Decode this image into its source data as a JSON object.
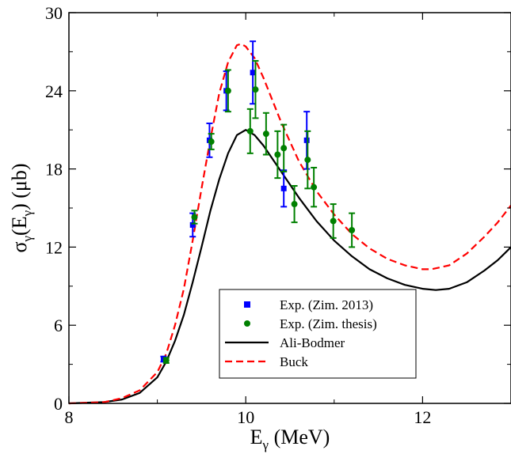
{
  "chart_data": {
    "type": "line",
    "title": "",
    "xlabel": {
      "main": "E",
      "sub": "γ",
      "unit": " (MeV)"
    },
    "ylabel": {
      "sigma": "σ",
      "sub1": "γ",
      "open": "(E",
      "sub2": "γ",
      "close": ") (μb)"
    },
    "xlim": [
      8,
      13
    ],
    "ylim": [
      0,
      30
    ],
    "x_ticks": [
      8,
      10,
      12
    ],
    "x_tick_labels": [
      "8",
      "10",
      "12"
    ],
    "y_ticks": [
      0,
      6,
      12,
      18,
      24,
      30
    ],
    "y_tick_labels": [
      "0",
      "6",
      "12",
      "18",
      "24",
      "30"
    ],
    "grid": false,
    "legend_placement": "bottom-center",
    "series": [
      {
        "name": "Exp. (Zim. 2013)",
        "kind": "scatter",
        "marker": "square",
        "color": "#0000ff",
        "points": [
          {
            "x": 9.07,
            "y": 3.4,
            "err": 0.2
          },
          {
            "x": 9.4,
            "y": 13.7,
            "err": 0.9
          },
          {
            "x": 9.59,
            "y": 20.2,
            "err": 1.3
          },
          {
            "x": 9.78,
            "y": 24.0,
            "err": 1.5
          },
          {
            "x": 10.08,
            "y": 25.4,
            "err": 2.4
          },
          {
            "x": 10.43,
            "y": 16.5,
            "err": 1.4
          },
          {
            "x": 10.69,
            "y": 20.2,
            "err": 2.2
          }
        ]
      },
      {
        "name": "Exp. (Zim. thesis)",
        "kind": "scatter",
        "marker": "circle",
        "color": "#008000",
        "points": [
          {
            "x": 9.1,
            "y": 3.3,
            "err": 0.2
          },
          {
            "x": 9.42,
            "y": 14.3,
            "err": 0.5
          },
          {
            "x": 9.61,
            "y": 20.1,
            "err": 0.6
          },
          {
            "x": 9.8,
            "y": 24.0,
            "err": 1.6
          },
          {
            "x": 10.05,
            "y": 20.9,
            "err": 1.7
          },
          {
            "x": 10.11,
            "y": 24.1,
            "err": 2.2
          },
          {
            "x": 10.23,
            "y": 20.7,
            "err": 1.6
          },
          {
            "x": 10.36,
            "y": 19.1,
            "err": 1.8
          },
          {
            "x": 10.43,
            "y": 19.6,
            "err": 1.8
          },
          {
            "x": 10.55,
            "y": 15.3,
            "err": 1.4
          },
          {
            "x": 10.7,
            "y": 18.7,
            "err": 2.2
          },
          {
            "x": 10.77,
            "y": 16.6,
            "err": 1.5
          },
          {
            "x": 10.99,
            "y": 14.0,
            "err": 1.3
          },
          {
            "x": 11.2,
            "y": 13.3,
            "err": 1.3
          }
        ]
      },
      {
        "name": "Ali-Bodmer",
        "kind": "line",
        "style": "solid",
        "color": "#000000",
        "points": [
          {
            "x": 8.0,
            "y": 0
          },
          {
            "x": 8.4,
            "y": 0.1
          },
          {
            "x": 8.6,
            "y": 0.3
          },
          {
            "x": 8.8,
            "y": 0.8
          },
          {
            "x": 9.0,
            "y": 2.0
          },
          {
            "x": 9.1,
            "y": 3.2
          },
          {
            "x": 9.2,
            "y": 4.8
          },
          {
            "x": 9.3,
            "y": 6.8
          },
          {
            "x": 9.4,
            "y": 9.3
          },
          {
            "x": 9.5,
            "y": 12.0
          },
          {
            "x": 9.6,
            "y": 14.8
          },
          {
            "x": 9.7,
            "y": 17.2
          },
          {
            "x": 9.8,
            "y": 19.2
          },
          {
            "x": 9.9,
            "y": 20.6
          },
          {
            "x": 10.0,
            "y": 21.0
          },
          {
            "x": 10.1,
            "y": 20.6
          },
          {
            "x": 10.2,
            "y": 19.8
          },
          {
            "x": 10.4,
            "y": 17.8
          },
          {
            "x": 10.6,
            "y": 15.8
          },
          {
            "x": 10.8,
            "y": 14.0
          },
          {
            "x": 11.0,
            "y": 12.5
          },
          {
            "x": 11.2,
            "y": 11.3
          },
          {
            "x": 11.4,
            "y": 10.3
          },
          {
            "x": 11.6,
            "y": 9.6
          },
          {
            "x": 11.8,
            "y": 9.1
          },
          {
            "x": 12.0,
            "y": 8.8
          },
          {
            "x": 12.15,
            "y": 8.7
          },
          {
            "x": 12.3,
            "y": 8.8
          },
          {
            "x": 12.5,
            "y": 9.3
          },
          {
            "x": 12.7,
            "y": 10.2
          },
          {
            "x": 12.85,
            "y": 11.0
          },
          {
            "x": 13.0,
            "y": 12.0
          }
        ]
      },
      {
        "name": "Buck",
        "kind": "line",
        "style": "dashed",
        "color": "#ff0000",
        "points": [
          {
            "x": 8.0,
            "y": 0
          },
          {
            "x": 8.4,
            "y": 0.1
          },
          {
            "x": 8.6,
            "y": 0.4
          },
          {
            "x": 8.8,
            "y": 1.0
          },
          {
            "x": 9.0,
            "y": 2.4
          },
          {
            "x": 9.1,
            "y": 3.8
          },
          {
            "x": 9.2,
            "y": 6.0
          },
          {
            "x": 9.3,
            "y": 8.8
          },
          {
            "x": 9.4,
            "y": 12.5
          },
          {
            "x": 9.5,
            "y": 16.5
          },
          {
            "x": 9.6,
            "y": 20.3
          },
          {
            "x": 9.7,
            "y": 23.8
          },
          {
            "x": 9.8,
            "y": 26.2
          },
          {
            "x": 9.9,
            "y": 27.5
          },
          {
            "x": 9.95,
            "y": 27.6
          },
          {
            "x": 10.0,
            "y": 27.4
          },
          {
            "x": 10.1,
            "y": 26.5
          },
          {
            "x": 10.2,
            "y": 25.0
          },
          {
            "x": 10.4,
            "y": 21.6
          },
          {
            "x": 10.6,
            "y": 18.6
          },
          {
            "x": 10.8,
            "y": 16.3
          },
          {
            "x": 11.0,
            "y": 14.5
          },
          {
            "x": 11.2,
            "y": 13.0
          },
          {
            "x": 11.4,
            "y": 11.9
          },
          {
            "x": 11.6,
            "y": 11.1
          },
          {
            "x": 11.8,
            "y": 10.6
          },
          {
            "x": 12.0,
            "y": 10.3
          },
          {
            "x": 12.1,
            "y": 10.3
          },
          {
            "x": 12.3,
            "y": 10.6
          },
          {
            "x": 12.5,
            "y": 11.5
          },
          {
            "x": 12.7,
            "y": 12.8
          },
          {
            "x": 12.85,
            "y": 13.9
          },
          {
            "x": 13.0,
            "y": 15.2
          }
        ]
      }
    ]
  }
}
